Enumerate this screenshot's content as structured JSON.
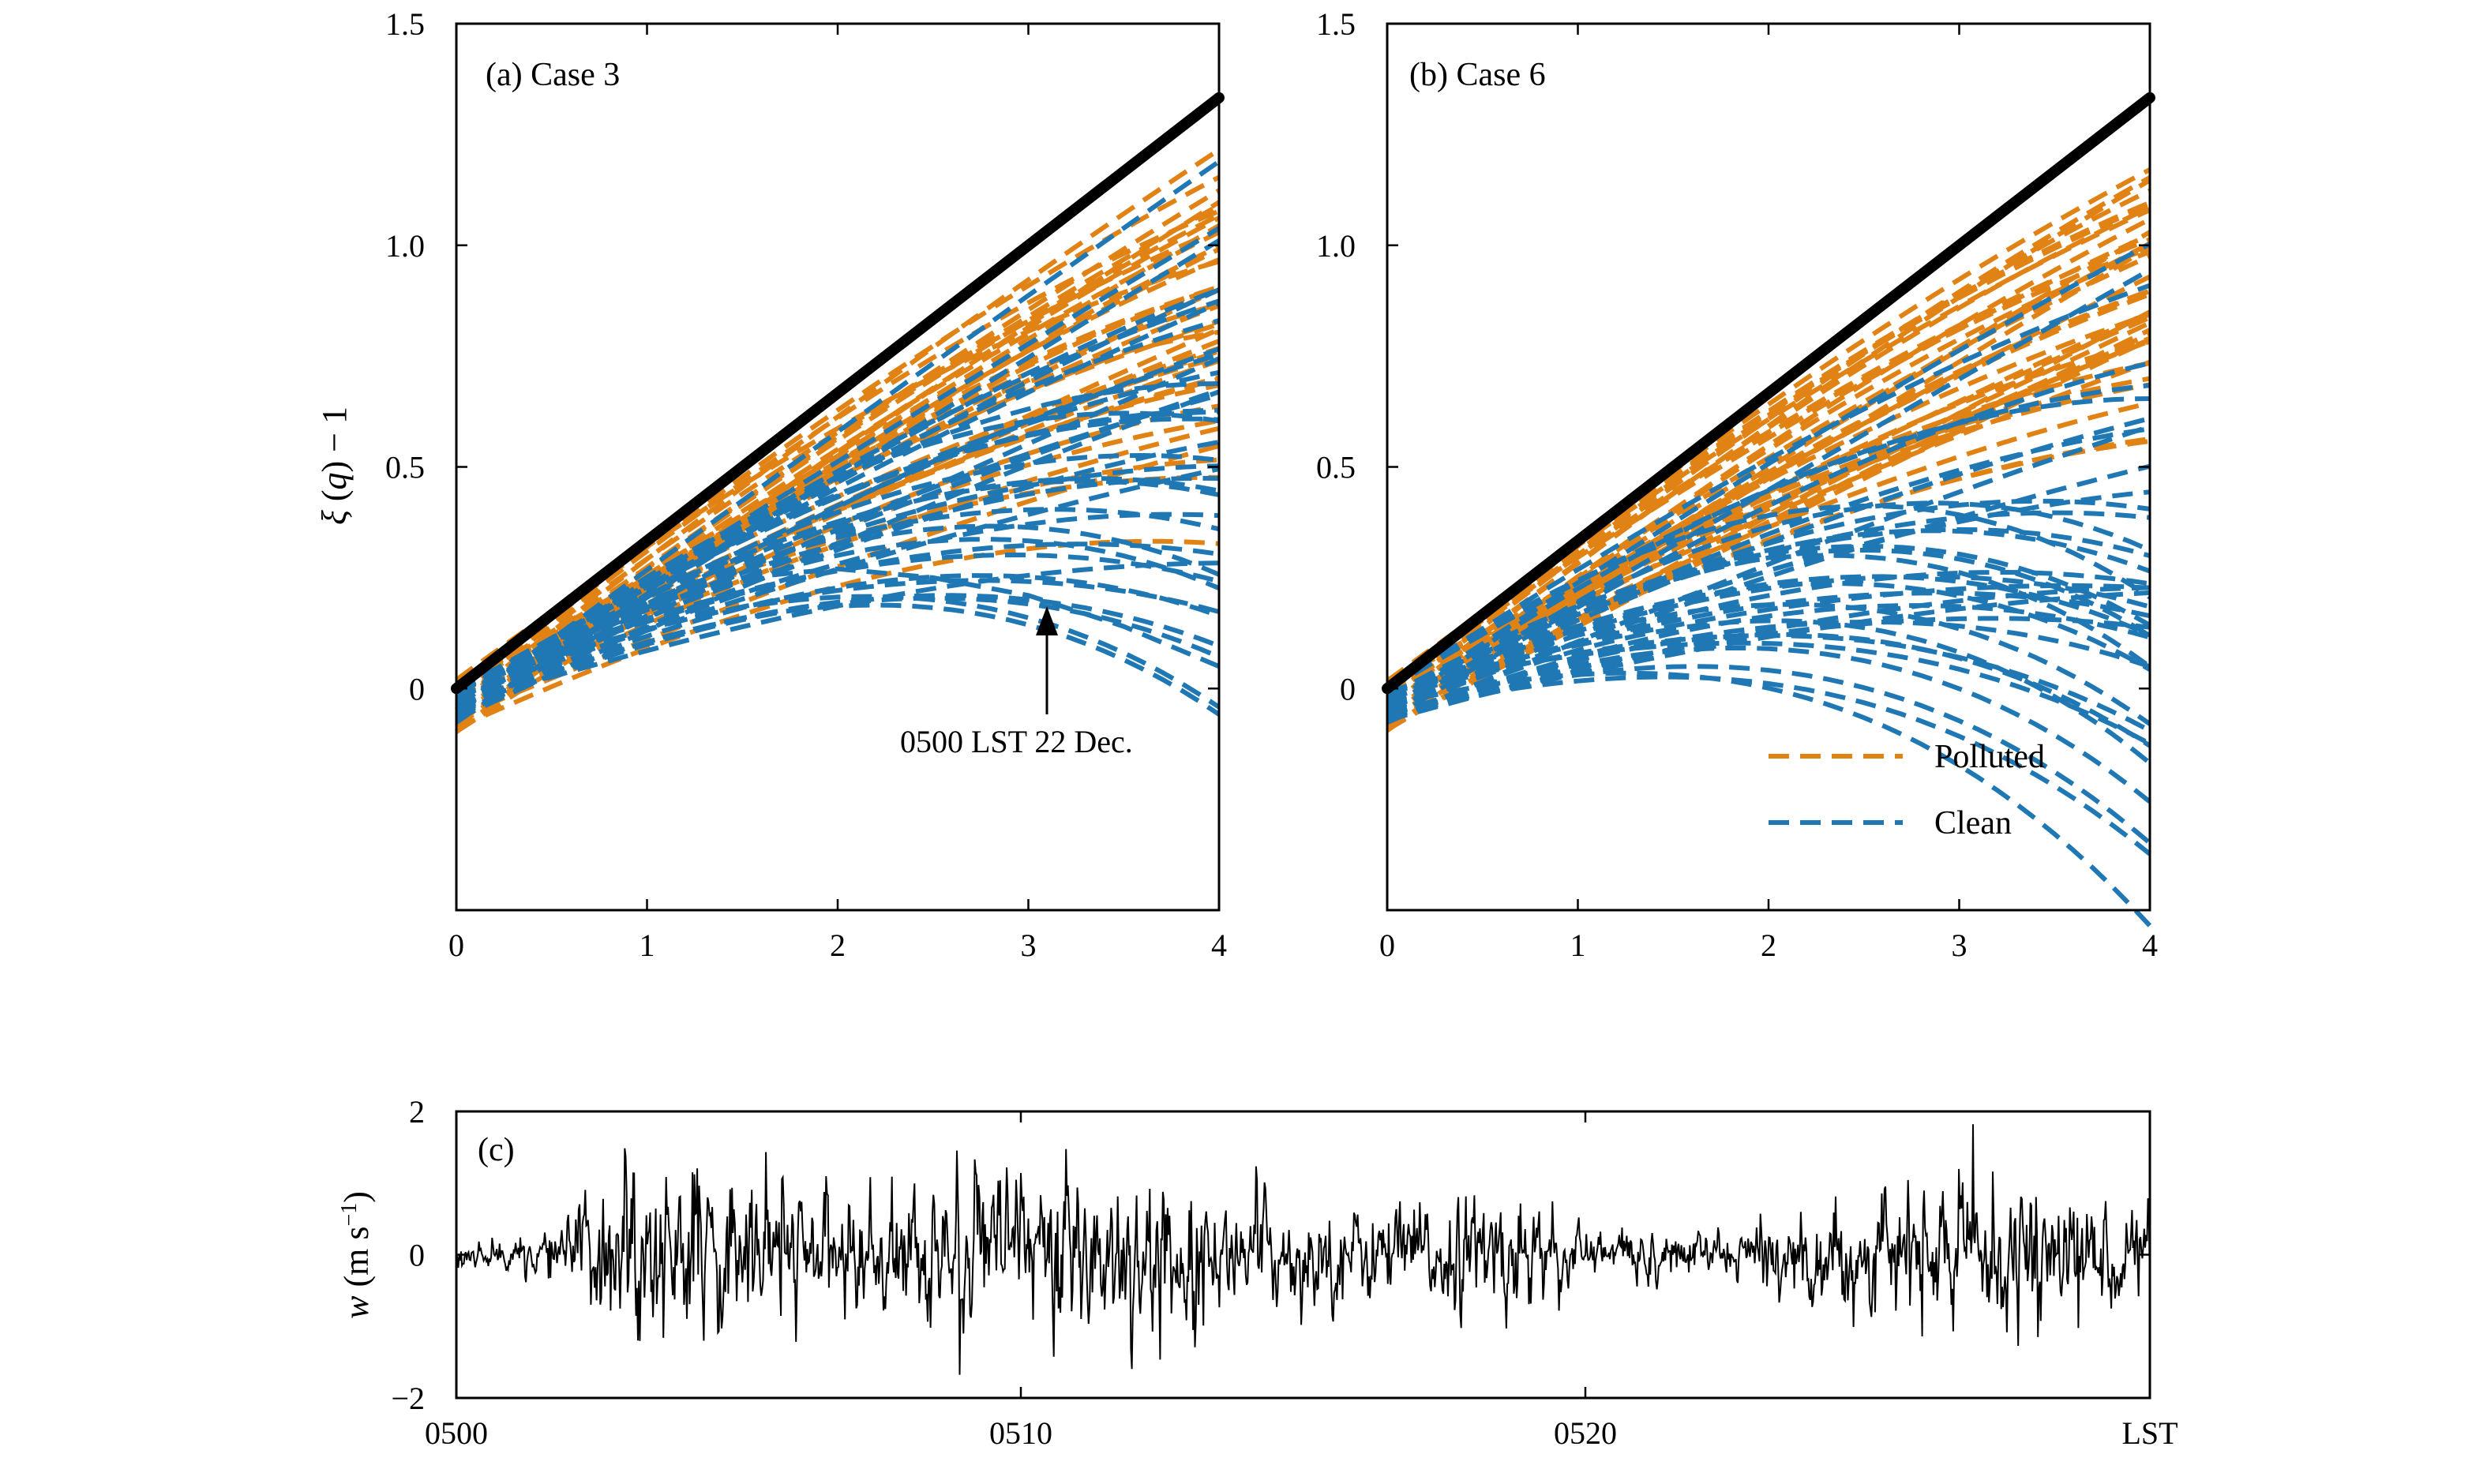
{
  "chart_data": [
    {
      "panel": "a",
      "type": "line",
      "panel_label": "(a) Case 3",
      "ylabel": "ξ (q) − 1",
      "xlabel": "",
      "xlim": [
        0,
        4
      ],
      "ylim": [
        -0.5,
        1.5
      ],
      "x_ticks": [
        0,
        1,
        2,
        3,
        4
      ],
      "x_tick_labels": [
        "0",
        "1",
        "2",
        "3",
        "4"
      ],
      "y_ticks": [
        0,
        0.5,
        1.0,
        1.5
      ],
      "y_tick_labels": [
        "0",
        "0.5",
        "1.0",
        "1.5"
      ],
      "reference_line": {
        "x": [
          0,
          4
        ],
        "y": [
          0,
          1.333
        ],
        "color": "#000000"
      },
      "series": [
        {
          "group": "Polluted",
          "color": "#E08214",
          "count": 40,
          "slope_range": [
            0.18,
            0.34
          ],
          "curvature_range": [
            0.0,
            0.012
          ],
          "offset_range": [
            -0.1,
            0.02
          ]
        },
        {
          "group": "Clean",
          "color": "#1F78B4",
          "count": 40,
          "slope_range": [
            0.13,
            0.32
          ],
          "curvature_range": [
            0.0,
            0.025
          ],
          "offset_range": [
            -0.08,
            0.0
          ]
        }
      ],
      "highlight_curve": {
        "group": "Clean",
        "color": "#1F78B4",
        "x": [
          0,
          0.5,
          1.0,
          1.5,
          2.0,
          2.5,
          3.0,
          3.5,
          4.0
        ],
        "y": [
          -0.05,
          0.09,
          0.18,
          0.25,
          0.27,
          0.25,
          0.21,
          0.14,
          0.05
        ]
      },
      "annotation": {
        "text": "0500 LST 22 Dec.",
        "x": 3.1,
        "y": 0.2
      }
    },
    {
      "panel": "b",
      "type": "line",
      "panel_label": "(b) Case 6",
      "xlim": [
        0,
        4
      ],
      "ylim": [
        -0.5,
        1.5
      ],
      "x_ticks": [
        0,
        1,
        2,
        3,
        4
      ],
      "x_tick_labels": [
        "0",
        "1",
        "2",
        "3",
        "4"
      ],
      "y_ticks": [
        0,
        0.5,
        1.0,
        1.5
      ],
      "y_tick_labels": [
        "0",
        "0.5",
        "1.0",
        "1.5"
      ],
      "reference_line": {
        "x": [
          0,
          4
        ],
        "y": [
          0,
          1.333
        ],
        "color": "#000000"
      },
      "series": [
        {
          "group": "Polluted",
          "color": "#E08214",
          "count": 40,
          "slope_range": [
            0.2,
            0.34
          ],
          "curvature_range": [
            0.0,
            0.01
          ],
          "offset_range": [
            -0.1,
            0.02
          ]
        },
        {
          "group": "Clean",
          "color": "#1F78B4",
          "count": 40,
          "slope_range": [
            0.1,
            0.3
          ],
          "curvature_range": [
            0.0,
            0.03
          ],
          "offset_range": [
            -0.08,
            0.0
          ]
        }
      ],
      "legend": {
        "placement": "bottom-right",
        "entries": [
          {
            "label": "Polluted",
            "color": "#E08214"
          },
          {
            "label": "Clean",
            "color": "#1F78B4"
          }
        ]
      }
    },
    {
      "panel": "c",
      "type": "line",
      "panel_label": "(c)",
      "ylabel": "w (m s⁻¹)",
      "x_tick_labels": [
        "0500",
        "0510",
        "0520",
        "LST"
      ],
      "y_ticks": [
        -2,
        0,
        2
      ],
      "y_tick_labels": [
        "−2",
        "0",
        "2"
      ],
      "ylim": [
        -2,
        2
      ],
      "series": [
        {
          "name": "w",
          "color": "#000000",
          "amplitude_envelope": [
            {
              "t": 0.0,
              "a": 0.08
            },
            {
              "t": 0.05,
              "a": 0.12
            },
            {
              "t": 0.09,
              "a": 0.5
            },
            {
              "t": 0.16,
              "a": 0.55
            },
            {
              "t": 0.22,
              "a": 0.35
            },
            {
              "t": 0.3,
              "a": 0.5
            },
            {
              "t": 0.38,
              "a": 0.6
            },
            {
              "t": 0.45,
              "a": 0.35
            },
            {
              "t": 0.55,
              "a": 0.3
            },
            {
              "t": 0.62,
              "a": 0.4
            },
            {
              "t": 0.66,
              "a": 0.2
            },
            {
              "t": 0.75,
              "a": 0.15
            },
            {
              "t": 0.8,
              "a": 0.3
            },
            {
              "t": 0.88,
              "a": 0.45
            },
            {
              "t": 0.94,
              "a": 0.4
            },
            {
              "t": 1.0,
              "a": 0.35
            }
          ]
        }
      ]
    }
  ],
  "strings": {
    "panel_a_label": "(a) Case 3",
    "panel_b_label": "(b) Case 6",
    "panel_c_label": "(c)",
    "ylabel_top_xi": "ξ",
    "ylabel_top_q": "q",
    "ylabel_top_rest": "− 1",
    "ylabel_bottom_w": "w",
    "ylabel_bottom_units": "(m s",
    "ylabel_bottom_sup": "−1",
    "ylabel_bottom_close": ")",
    "annotation": "0500 LST 22 Dec.",
    "legend_polluted": "Polluted",
    "legend_clean": "Clean"
  }
}
